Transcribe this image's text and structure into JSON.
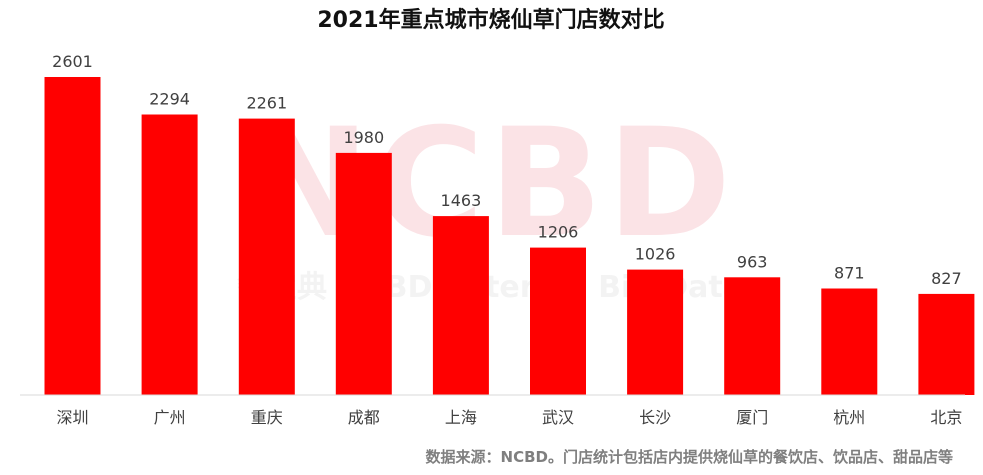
{
  "watermark": {
    "logo": "NCBD",
    "tagline": "餐宝典 NCBD Catering Big Data"
  },
  "chart_data": {
    "type": "bar",
    "title": "2021年重点城市烧仙草门店数对比",
    "xlabel": "",
    "ylabel": "",
    "categories": [
      "深圳",
      "广州",
      "重庆",
      "成都",
      "上海",
      "武汉",
      "长沙",
      "厦门",
      "杭州",
      "北京"
    ],
    "values": [
      2601,
      2294,
      2261,
      1980,
      1463,
      1206,
      1026,
      963,
      871,
      827
    ],
    "ylim": [
      0,
      2601
    ],
    "bar_color": "#ff0000",
    "grid": false,
    "legend": "none",
    "source": "数据来源：NCBD。门店统计包括店内提供烧仙草的餐饮店、饮品店、甜品店等"
  }
}
